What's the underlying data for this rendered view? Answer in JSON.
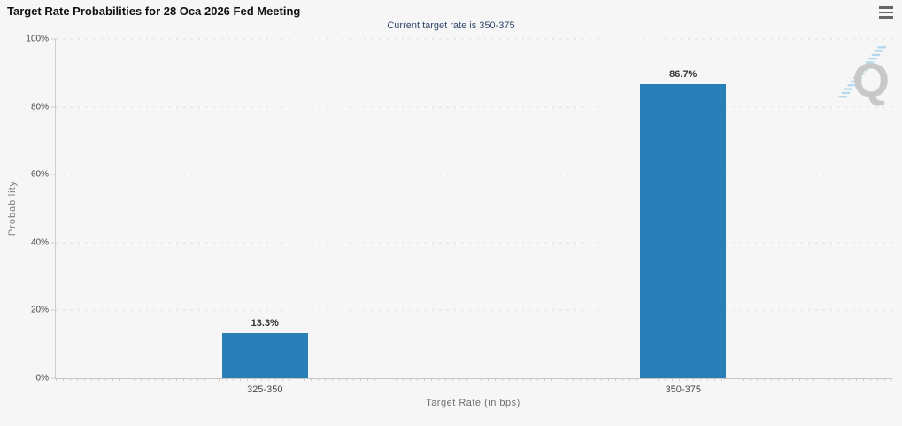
{
  "page": {
    "title": "Target Rate Probabilities for 28 Oca 2026 Fed Meeting",
    "subtitle": "Current target rate is 350-375",
    "menu_icon": "hamburger-menu-icon",
    "watermark_letter": "Q"
  },
  "chart_data": {
    "type": "bar",
    "title": "Target Rate Probabilities for 28 Oca 2026 Fed Meeting",
    "subtitle": "Current target rate is 350-375",
    "categories": [
      "325-350",
      "350-375"
    ],
    "values": [
      13.3,
      86.7
    ],
    "value_labels": [
      "13.3%",
      "86.7%"
    ],
    "xlabel": "Target Rate (in bps)",
    "ylabel": "Probability",
    "ylim": [
      0,
      100
    ],
    "ytick_values": [
      0,
      20,
      40,
      60,
      80,
      100
    ],
    "ytick_labels": [
      "0%",
      "20%",
      "40%",
      "60%",
      "80%",
      "100%"
    ],
    "grid": "horizontal-dotted",
    "legend": "none",
    "bar_color": "#2a7fb8"
  },
  "colors": {
    "background": "#f6f6f6",
    "bar": "#2a7fb8",
    "subtitle_text": "#31476b",
    "axis_line": "#c9c9c9",
    "grid_dots": "#d4d4d4",
    "tick_text": "#4a4a4a",
    "axis_title_text": "#6f6f6f",
    "watermark_q": "#c8c8c8",
    "watermark_stripes": "#b7d9ec"
  }
}
